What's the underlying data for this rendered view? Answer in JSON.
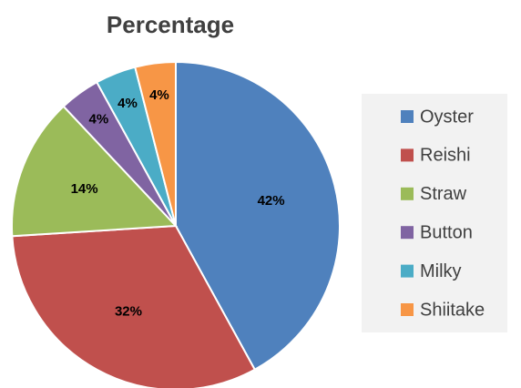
{
  "chart_data": {
    "type": "pie",
    "title": "Percentage",
    "categories": [
      "Oyster",
      "Reishi",
      "Straw",
      "Button",
      "Milky",
      "Shiitake"
    ],
    "values": [
      42,
      32,
      14,
      4,
      4,
      4
    ],
    "value_labels": [
      "42%",
      "32%",
      "14%",
      "4%",
      "4%",
      "4%"
    ],
    "colors": [
      "#4f81bd",
      "#c0504d",
      "#9bbb59",
      "#8064a2",
      "#4bacc6",
      "#f79646"
    ],
    "legend": "right"
  }
}
